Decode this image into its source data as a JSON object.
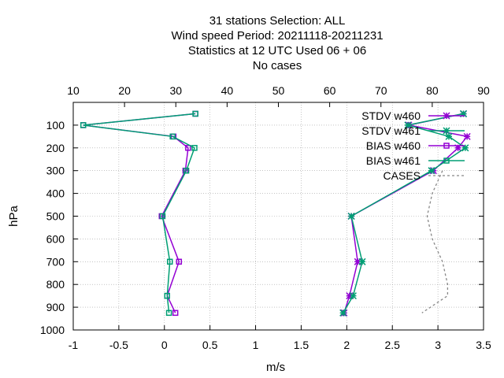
{
  "chart_data": {
    "type": "line",
    "title_lines": [
      "31 stations Selection: ALL",
      "Wind speed  Period: 20211118-20211231",
      "Statistics at 12 UTC  Used  06  + 06",
      "No cases"
    ],
    "xlabel": "m/s",
    "ylabel": "hPa",
    "xlim": [
      -1,
      3.5
    ],
    "x_ticks": [
      "-1",
      "-0.5",
      "0",
      "0.5",
      "1",
      "1.5",
      "2",
      "2.5",
      "3",
      "3.5"
    ],
    "x2lim": [
      10,
      90
    ],
    "x2_ticks": [
      "10",
      "20",
      "30",
      "40",
      "50",
      "60",
      "70",
      "80",
      "90"
    ],
    "ylim": [
      1000,
      0
    ],
    "y_ticks": [
      "100",
      "200",
      "300",
      "400",
      "500",
      "600",
      "700",
      "800",
      "900",
      "1000"
    ],
    "grid": true,
    "legend_position": "top-right",
    "series": [
      {
        "name": "STDV w460",
        "color": "#9400d3",
        "marker": "star",
        "x": [
          3.28,
          2.68,
          3.32,
          3.22,
          2.95,
          2.05,
          2.12,
          2.03,
          1.97
        ],
        "y": [
          50,
          100,
          150,
          200,
          300,
          500,
          700,
          850,
          925
        ]
      },
      {
        "name": "STDV w461",
        "color": "#009e73",
        "marker": "star",
        "x": [
          3.28,
          2.67,
          3.12,
          3.3,
          2.93,
          2.05,
          2.17,
          2.07,
          1.96
        ],
        "y": [
          50,
          100,
          150,
          200,
          300,
          500,
          700,
          850,
          925
        ]
      },
      {
        "name": "BIAS w460",
        "color": "#9400d3",
        "marker": "square",
        "x": [
          0.34,
          -0.89,
          0.1,
          0.26,
          0.23,
          -0.03,
          0.16,
          0.03,
          0.12
        ],
        "y": [
          50,
          100,
          150,
          200,
          300,
          500,
          700,
          850,
          925
        ]
      },
      {
        "name": "BIAS w461",
        "color": "#009e73",
        "marker": "square",
        "x": [
          0.34,
          -0.89,
          0.09,
          0.33,
          0.24,
          -0.02,
          0.06,
          0.03,
          0.05
        ],
        "y": [
          50,
          100,
          150,
          200,
          300,
          500,
          700,
          850,
          925
        ]
      },
      {
        "name": "CASES",
        "color": "#888888",
        "marker": "none",
        "dashed": true,
        "axis": "x2",
        "x": [
          82,
          80,
          79,
          80,
          82,
          83,
          83,
          78
        ],
        "y": [
          300,
          400,
          500,
          600,
          700,
          800,
          850,
          925
        ]
      }
    ]
  }
}
